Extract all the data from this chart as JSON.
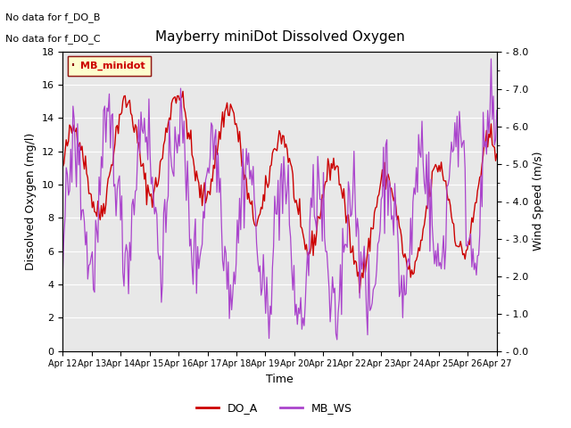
{
  "title": "Mayberry miniDot Dissolved Oxygen",
  "xlabel": "Time",
  "ylabel_left": "Dissolved Oxygen (mg/l)",
  "ylabel_right": "Wind Speed (m/s)",
  "ylim_left": [
    0,
    18
  ],
  "ylim_right": [
    0.0,
    8.0
  ],
  "yticks_left": [
    0,
    2,
    4,
    6,
    8,
    10,
    12,
    14,
    16,
    18
  ],
  "yticks_right": [
    0.0,
    1.0,
    2.0,
    3.0,
    4.0,
    5.0,
    6.0,
    7.0,
    8.0
  ],
  "xticklabels": [
    "Apr 12",
    "Apr 13",
    "Apr 14",
    "Apr 15",
    "Apr 16",
    "Apr 17",
    "Apr 18",
    "Apr 19",
    "Apr 20",
    "Apr 21",
    "Apr 22",
    "Apr 23",
    "Apr 24",
    "Apr 25",
    "Apr 26",
    "Apr 27"
  ],
  "color_do": "#cc0000",
  "color_ws": "#aa44cc",
  "legend_box_label": "MB_minidot",
  "legend_box_edgecolor": "#880000",
  "legend_box_facecolor": "#ffffcc",
  "legend_text_color": "#cc0000",
  "annotation1": "No data for f_DO_B",
  "annotation2": "No data for f_DO_C",
  "bg_color": "#e8e8e8",
  "legend_labels": [
    "DO_A",
    "MB_WS"
  ],
  "seed": 42
}
